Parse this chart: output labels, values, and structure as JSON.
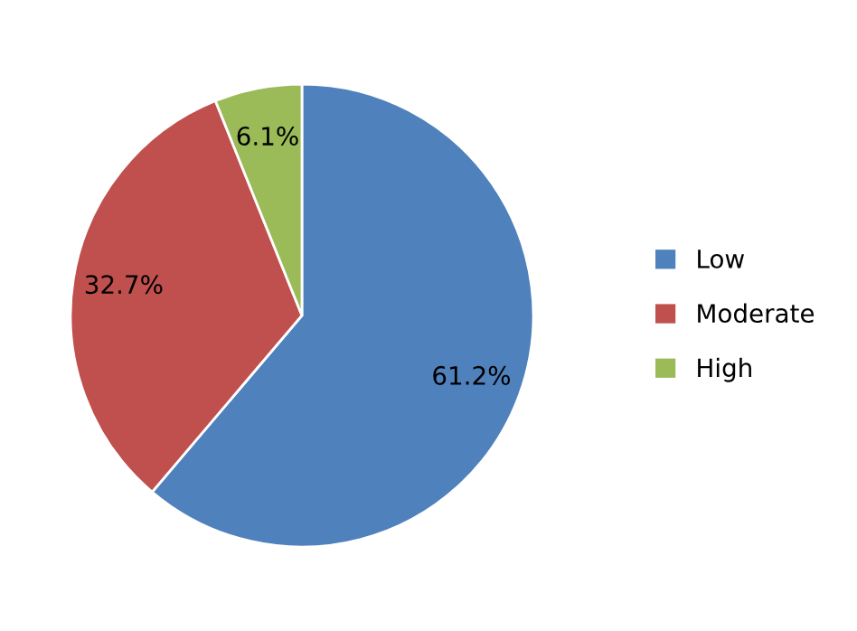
{
  "chart_data": {
    "type": "pie",
    "categories": [
      "Low",
      "Moderate",
      "High"
    ],
    "values": [
      61.2,
      32.7,
      6.1
    ],
    "colors": [
      "#4f81bd",
      "#c0504d",
      "#9bbb59"
    ],
    "value_labels": [
      "61.2%",
      "32.7%",
      "6.1%"
    ],
    "legend": "right"
  }
}
